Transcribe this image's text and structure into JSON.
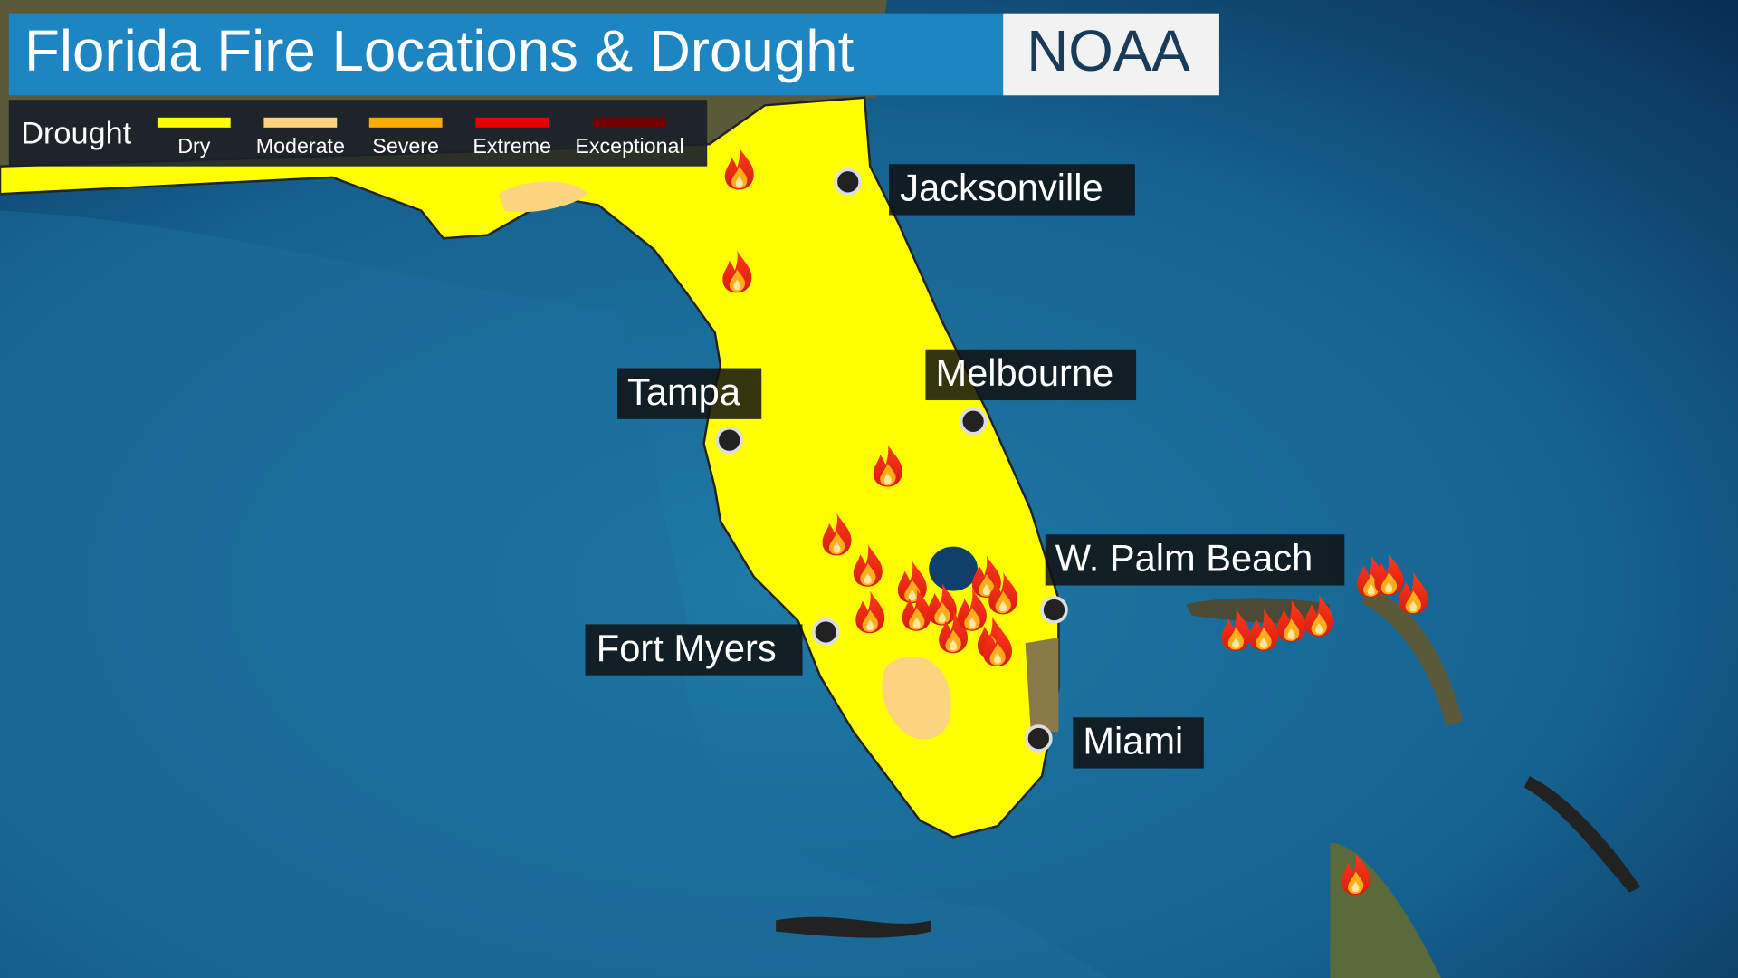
{
  "header": {
    "title": "Florida Fire Locations & Drought",
    "source": "NOAA"
  },
  "legend": {
    "title": "Drought",
    "items": [
      {
        "label": "Dry",
        "color": "#ffff00"
      },
      {
        "label": "Moderate",
        "color": "#fcd37f"
      },
      {
        "label": "Severe",
        "color": "#ffaa00"
      },
      {
        "label": "Extreme",
        "color": "#e60000"
      },
      {
        "label": "Exceptional",
        "color": "#730000"
      }
    ]
  },
  "cities": [
    {
      "label": "Jacksonville"
    },
    {
      "label": "Melbourne"
    },
    {
      "label": "Tampa"
    },
    {
      "label": "W. Palm Beach"
    },
    {
      "label": "Fort Myers"
    },
    {
      "label": "Miami"
    }
  ]
}
